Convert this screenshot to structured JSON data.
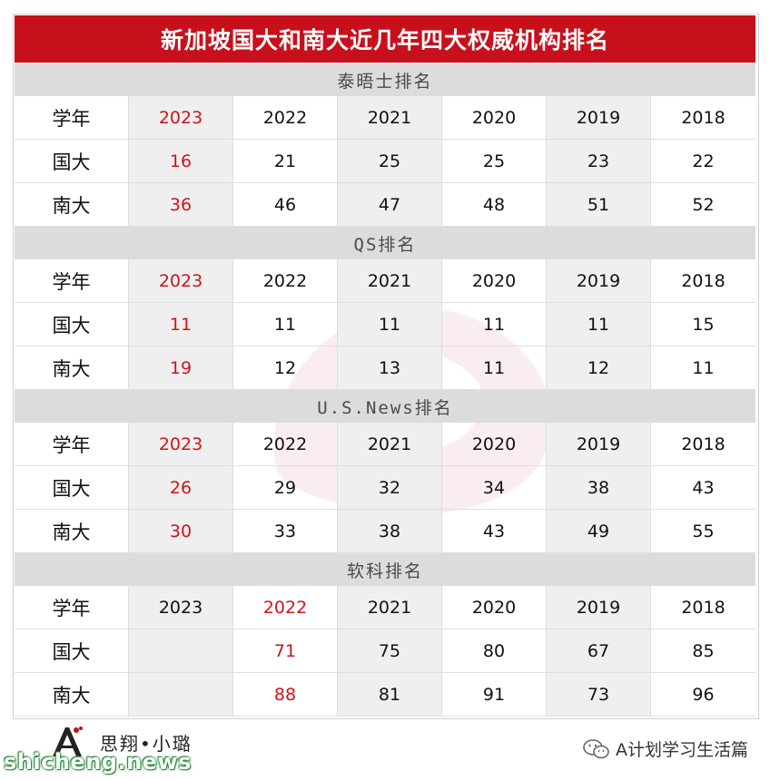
{
  "title": "新加坡国大和南大近几年四大权威机构排名",
  "sections": [
    {
      "heading": "泰晤士排名",
      "rows": [
        {
          "label": "学年",
          "cells": [
            "2023",
            "2022",
            "2021",
            "2020",
            "2019",
            "2018"
          ]
        },
        {
          "label": "国大",
          "cells": [
            "16",
            "21",
            "25",
            "25",
            "23",
            "22"
          ]
        },
        {
          "label": "南大",
          "cells": [
            "36",
            "46",
            "47",
            "48",
            "51",
            "52"
          ]
        }
      ]
    },
    {
      "heading": "QS排名",
      "rows": [
        {
          "label": "学年",
          "cells": [
            "2023",
            "2022",
            "2021",
            "2020",
            "2019",
            "2018"
          ]
        },
        {
          "label": "国大",
          "cells": [
            "11",
            "11",
            "11",
            "11",
            "11",
            "15"
          ]
        },
        {
          "label": "南大",
          "cells": [
            "19",
            "12",
            "13",
            "11",
            "12",
            "11"
          ]
        }
      ]
    },
    {
      "heading": "U.S.News排名",
      "rows": [
        {
          "label": "学年",
          "cells": [
            "2023",
            "2022",
            "2021",
            "2020",
            "2019",
            "2018"
          ]
        },
        {
          "label": "国大",
          "cells": [
            "26",
            "29",
            "32",
            "34",
            "38",
            "43"
          ]
        },
        {
          "label": "南大",
          "cells": [
            "30",
            "33",
            "38",
            "43",
            "49",
            "55"
          ]
        }
      ]
    },
    {
      "heading": "软科排名",
      "rows": [
        {
          "label": "学年",
          "cells": [
            "2023",
            "2022",
            "2021",
            "2020",
            "2019",
            "2018"
          ]
        },
        {
          "label": "国大",
          "cells": [
            "",
            "71",
            "75",
            "80",
            "67",
            "85"
          ]
        },
        {
          "label": "南大",
          "cells": [
            "",
            "88",
            "81",
            "91",
            "73",
            "96"
          ]
        }
      ]
    }
  ],
  "highlight_color": "#d0131b",
  "footer": {
    "logo_text": "思翔•小璐",
    "site": "shicheng.news",
    "wechat_account": "A计划学习生活篇"
  }
}
